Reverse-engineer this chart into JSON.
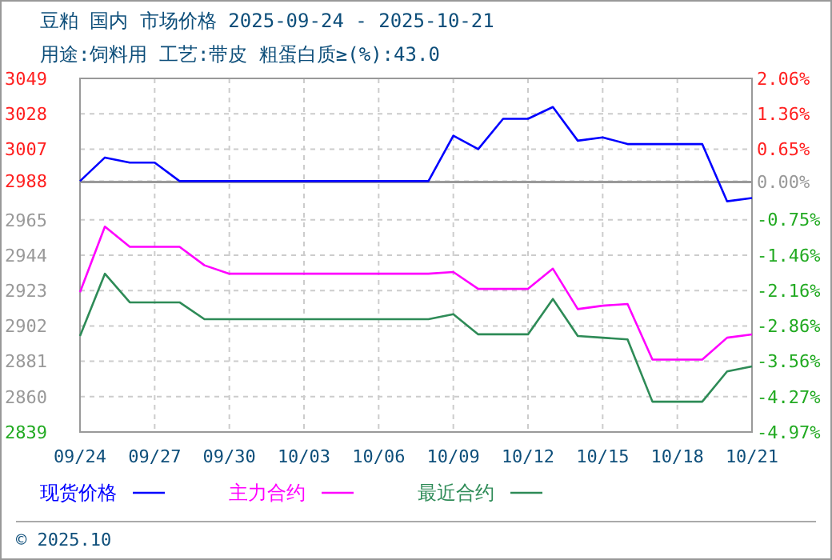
{
  "chart_data": {
    "type": "line",
    "title": "豆粕 国内 市场价格 2025-09-24 - 2025-10-21",
    "subtitle": "用途:饲料用 工艺:带皮 粗蛋白质≥(%):43.0",
    "x": [
      "--09-24",
      "--09-25",
      "--09-26",
      "--09-27",
      "--09-28",
      "--09-29",
      "--09-30",
      "--10-01",
      "--10-02",
      "--10-03",
      "--10-04",
      "--10-05",
      "--10-06",
      "--10-07",
      "--10-08",
      "--10-09",
      "--10-10",
      "--10-11",
      "--10-12",
      "--10-13",
      "--10-14",
      "--10-15",
      "--10-16",
      "--10-17",
      "--10-18",
      "--10-19",
      "--10-20",
      "--10-21"
    ],
    "series": [
      {
        "name": "现货价格",
        "color": "#0000ff",
        "values": [
          2988,
          3002,
          2999,
          2999,
          2988,
          2988,
          2988,
          2988,
          2988,
          2988,
          2988,
          2988,
          2988,
          2988,
          2988,
          3015,
          3007,
          3025,
          3025,
          3032,
          3012,
          3014,
          3010,
          3010,
          3010,
          3010,
          2976,
          2978
        ]
      },
      {
        "name": "主力合约",
        "color": "#ff00ff",
        "values": [
          2922,
          2961,
          2949,
          2949,
          2949,
          2938,
          2933,
          2933,
          2933,
          2933,
          2933,
          2933,
          2933,
          2933,
          2933,
          2934,
          2924,
          2924,
          2924,
          2936,
          2912,
          2914,
          2915,
          2882,
          2882,
          2882,
          2895,
          2897
        ]
      },
      {
        "name": "最近合约",
        "color": "#2e8b57",
        "values": [
          2896,
          2933,
          2916,
          2916,
          2916,
          2906,
          2906,
          2906,
          2906,
          2906,
          2906,
          2906,
          2906,
          2906,
          2906,
          2909,
          2897,
          2897,
          2897,
          2918,
          2896,
          2895,
          2894,
          2857,
          2857,
          2857,
          2875,
          2878
        ]
      }
    ],
    "xlim": [
      "--09-24",
      "--10-21"
    ],
    "xticks": [
      {
        "value": "--09-24",
        "label": "09/24"
      },
      {
        "value": "--09-27",
        "label": "09/27"
      },
      {
        "value": "--09-30",
        "label": "09/30"
      },
      {
        "value": "--10-03",
        "label": "10/03"
      },
      {
        "value": "--10-06",
        "label": "10/06"
      },
      {
        "value": "--10-09",
        "label": "10/09"
      },
      {
        "value": "--10-12",
        "label": "10/12"
      },
      {
        "value": "--10-15",
        "label": "10/15"
      },
      {
        "value": "--10-18",
        "label": "10/18"
      },
      {
        "value": "--10-21",
        "label": "10/21"
      }
    ],
    "ylim": [
      2839,
      3049
    ],
    "yticks": [
      2839,
      2860,
      2881,
      2902,
      2923,
      2944,
      2965,
      2988,
      3007,
      3028,
      3049
    ],
    "y2lim": [
      -4.97,
      2.06
    ],
    "y2ticks": [
      {
        "value": -4.97,
        "label": "-4.97%"
      },
      {
        "value": -4.27,
        "label": "-4.27%"
      },
      {
        "value": -3.56,
        "label": "-3.56%"
      },
      {
        "value": -2.86,
        "label": "-2.86%"
      },
      {
        "value": -2.16,
        "label": "-2.16%"
      },
      {
        "value": -1.46,
        "label": "-1.46%"
      },
      {
        "value": -0.75,
        "label": "-0.75%"
      },
      {
        "value": 0,
        "label": "0.00%"
      },
      {
        "value": 0.65,
        "label": "0.65%"
      },
      {
        "value": 1.36,
        "label": "1.36%"
      },
      {
        "value": 2.06,
        "label": "2.06%"
      }
    ],
    "ref_lines": [
      {
        "axis": "y2",
        "value": 0,
        "color": "#999999"
      }
    ],
    "grid": true,
    "legend": "bottom",
    "line_style": "solid",
    "marker": "none",
    "annotations": [
      "© 2025.10"
    ]
  }
}
